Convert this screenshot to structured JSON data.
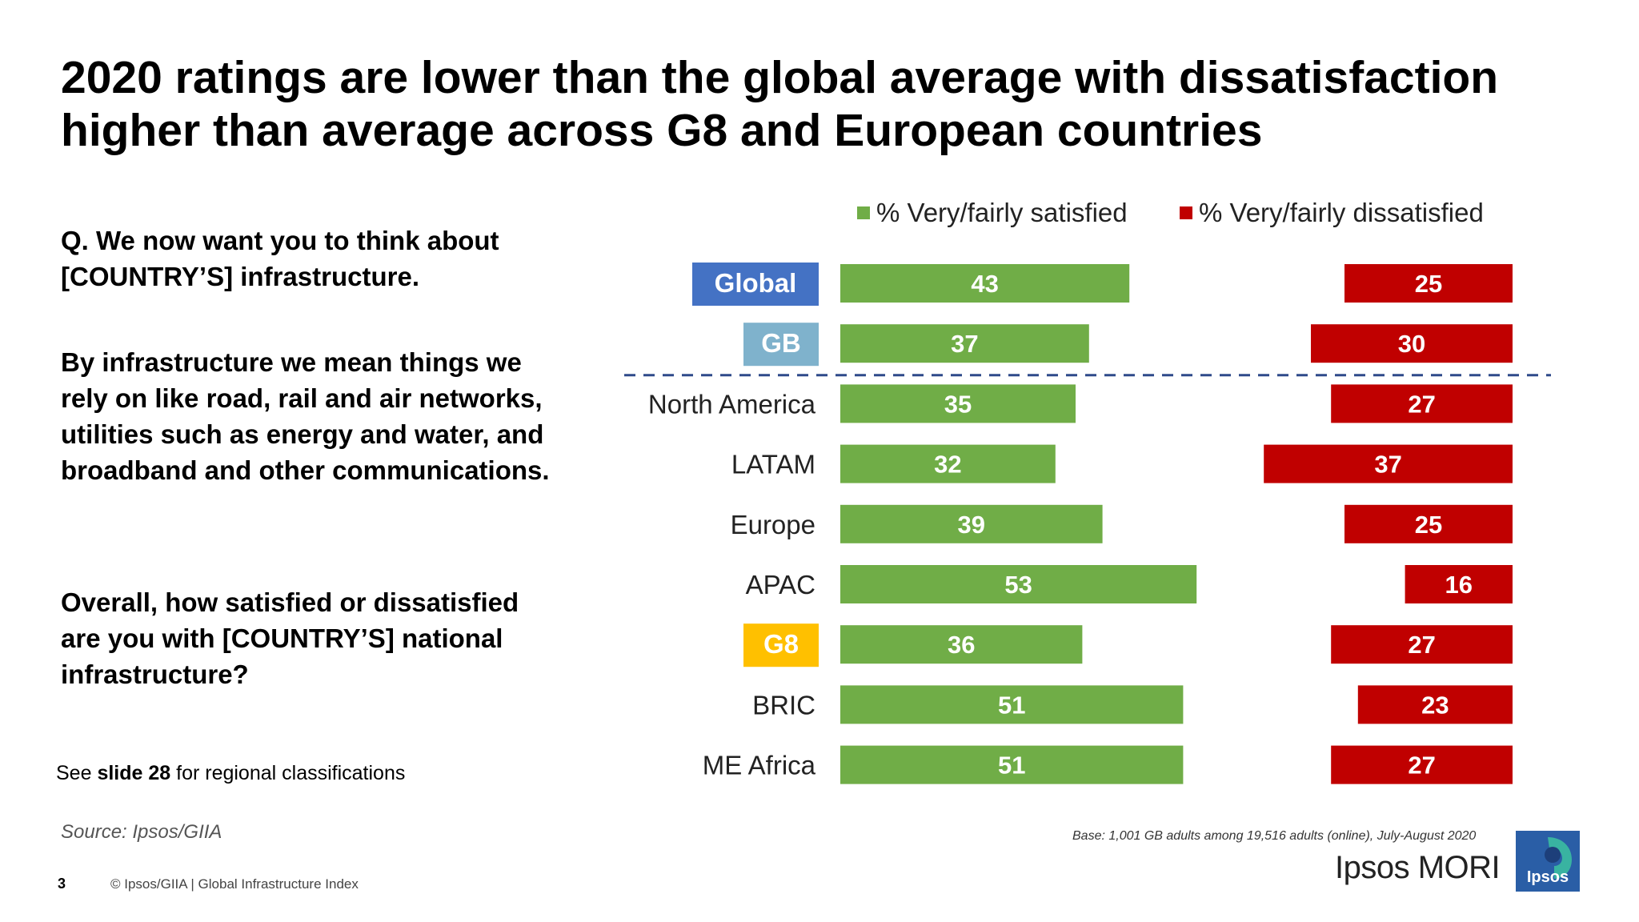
{
  "title": "2020 ratings are lower than the global average with dissatisfaction higher than average across G8 and European countries",
  "question": {
    "q1": "Q. We now want you to think about [COUNTRY’S] infrastructure.",
    "q2": "By infrastructure we mean things we rely on like road, rail and air networks, utilities such as energy and water, and broadband and other communications.",
    "q3": "Overall, how satisfied or dissatisfied are you with [COUNTRY’S] national infrastructure?"
  },
  "note": {
    "prefix": "See ",
    "bold": "slide 28",
    "suffix": " for regional classifications"
  },
  "source": "Source: Ipsos/GIIA",
  "page_number": "3",
  "copyright": "© Ipsos/GIIA | Global Infrastructure Index",
  "base_note": "Base: 1,001 GB adults among 19,516 adults (online), July-August 2020",
  "brand": {
    "text": "Ipsos MORI",
    "logo_word": "Ipsos",
    "logo_color": "#2a5ea6",
    "logo_accent": "#39b3a1"
  },
  "colors": {
    "satisfied": "#70ad47",
    "dissatisfied": "#c00000",
    "global_highlight": "#4472c4",
    "gb_highlight": "#7fb2cc",
    "g8_highlight": "#ffc000",
    "divider": "#2f4a8a"
  },
  "chart_data": {
    "type": "bar",
    "orientation": "horizontal",
    "categories": [
      "Global",
      "GB",
      "North America",
      "LATAM",
      "Europe",
      "APAC",
      "G8",
      "BRIC",
      "ME Africa"
    ],
    "highlighted_categories": {
      "Global": "global_highlight",
      "GB": "gb_highlight",
      "G8": "g8_highlight"
    },
    "series": [
      {
        "name": "% Very/fairly satisfied",
        "values": [
          43,
          37,
          35,
          32,
          39,
          53,
          36,
          51,
          51
        ],
        "color": "#70ad47",
        "alignment": "left"
      },
      {
        "name": "% Very/fairly dissatisfied",
        "values": [
          25,
          30,
          27,
          37,
          25,
          16,
          27,
          23,
          27
        ],
        "color": "#c00000",
        "alignment": "right"
      }
    ],
    "divider_after_category": "GB",
    "legend_position": "top",
    "data_labels": true,
    "grid": false
  }
}
